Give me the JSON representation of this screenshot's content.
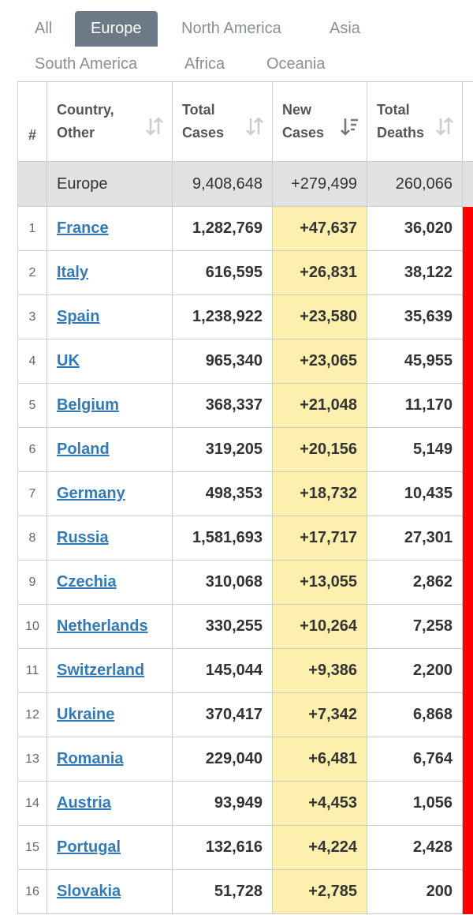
{
  "tabs": [
    "All",
    "Europe",
    "North America",
    "Asia",
    "South America",
    "Africa",
    "Oceania"
  ],
  "selected_tab": "Europe",
  "table": {
    "header": [
      "#",
      "Country, Other",
      "Total Cases",
      "New Cases",
      "Total Deaths"
    ],
    "summary": [
      "Europe",
      "9,408,648",
      "+279,499",
      "260,066"
    ],
    "rows": [
      [
        "1",
        "France",
        "1,282,769",
        "+47,637",
        "36,020"
      ],
      [
        "2",
        "Italy",
        "616,595",
        "+26,831",
        "38,122"
      ],
      [
        "3",
        "Spain",
        "1,238,922",
        "+23,580",
        "35,639"
      ],
      [
        "4",
        "UK",
        "965,340",
        "+23,065",
        "45,955"
      ],
      [
        "5",
        "Belgium",
        "368,337",
        "+21,048",
        "11,170"
      ],
      [
        "6",
        "Poland",
        "319,205",
        "+20,156",
        "5,149"
      ],
      [
        "7",
        "Germany",
        "498,353",
        "+18,732",
        "10,435"
      ],
      [
        "8",
        "Russia",
        "1,581,693",
        "+17,717",
        "27,301"
      ],
      [
        "9",
        "Czechia",
        "310,068",
        "+13,055",
        "2,862"
      ],
      [
        "10",
        "Netherlands",
        "330,255",
        "+10,264",
        "7,258"
      ],
      [
        "11",
        "Switzerland",
        "145,044",
        "+9,386",
        "2,200"
      ],
      [
        "12",
        "Ukraine",
        "370,417",
        "+7,342",
        "6,868"
      ],
      [
        "13",
        "Romania",
        "229,040",
        "+6,481",
        "6,764"
      ],
      [
        "14",
        "Austria",
        "93,949",
        "+4,453",
        "1,056"
      ],
      [
        "15",
        "Portugal",
        "132,616",
        "+4,224",
        "2,428"
      ],
      [
        "16",
        "Slovakia",
        "51,728",
        "+2,785",
        "200"
      ]
    ]
  }
}
